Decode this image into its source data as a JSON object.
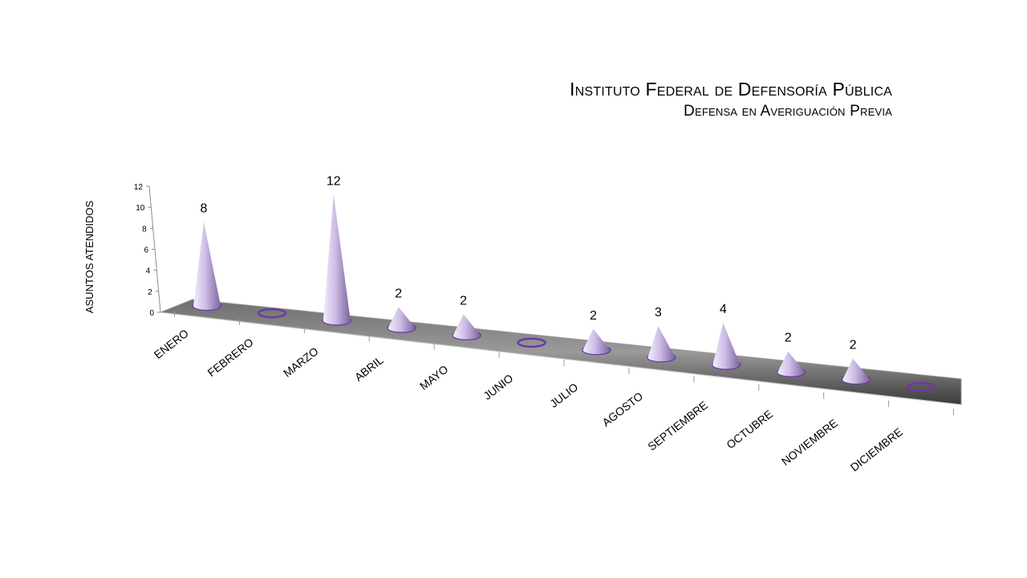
{
  "title": {
    "line1": "Instituto Federal de Defensoría Pública",
    "line2": "Defensa en Averiguación Previa"
  },
  "colors": {
    "cone_light": "#f3eefb",
    "cone_mid": "#cdbbe6",
    "cone_dark": "#7a639c",
    "ring": "#6a3aa2",
    "floor_light": "#8a8a8a",
    "floor_dark": "#3c3c3c"
  },
  "chart_data": {
    "type": "bar",
    "style": "3d-cone",
    "title": "",
    "ylabel": "ASUNTOS ATENDIDOS",
    "xlabel": "",
    "ylim": [
      0,
      12
    ],
    "yticks": [
      0,
      2,
      4,
      6,
      8,
      10,
      12
    ],
    "grid": false,
    "categories": [
      "ENERO",
      "FEBRERO",
      "MARZO",
      "ABRIL",
      "MAYO",
      "JUNIO",
      "JULIO",
      "AGOSTO",
      "SEPTIEMBRE",
      "OCTUBRE",
      "NOVIEMBRE",
      "DICIEMBRE"
    ],
    "values": [
      8,
      0,
      12,
      2,
      2,
      0,
      2,
      3,
      4,
      2,
      2,
      0
    ],
    "data_labels": [
      "8",
      "",
      "12",
      "2",
      "2",
      "",
      "2",
      "3",
      "4",
      "2",
      "2",
      ""
    ]
  }
}
